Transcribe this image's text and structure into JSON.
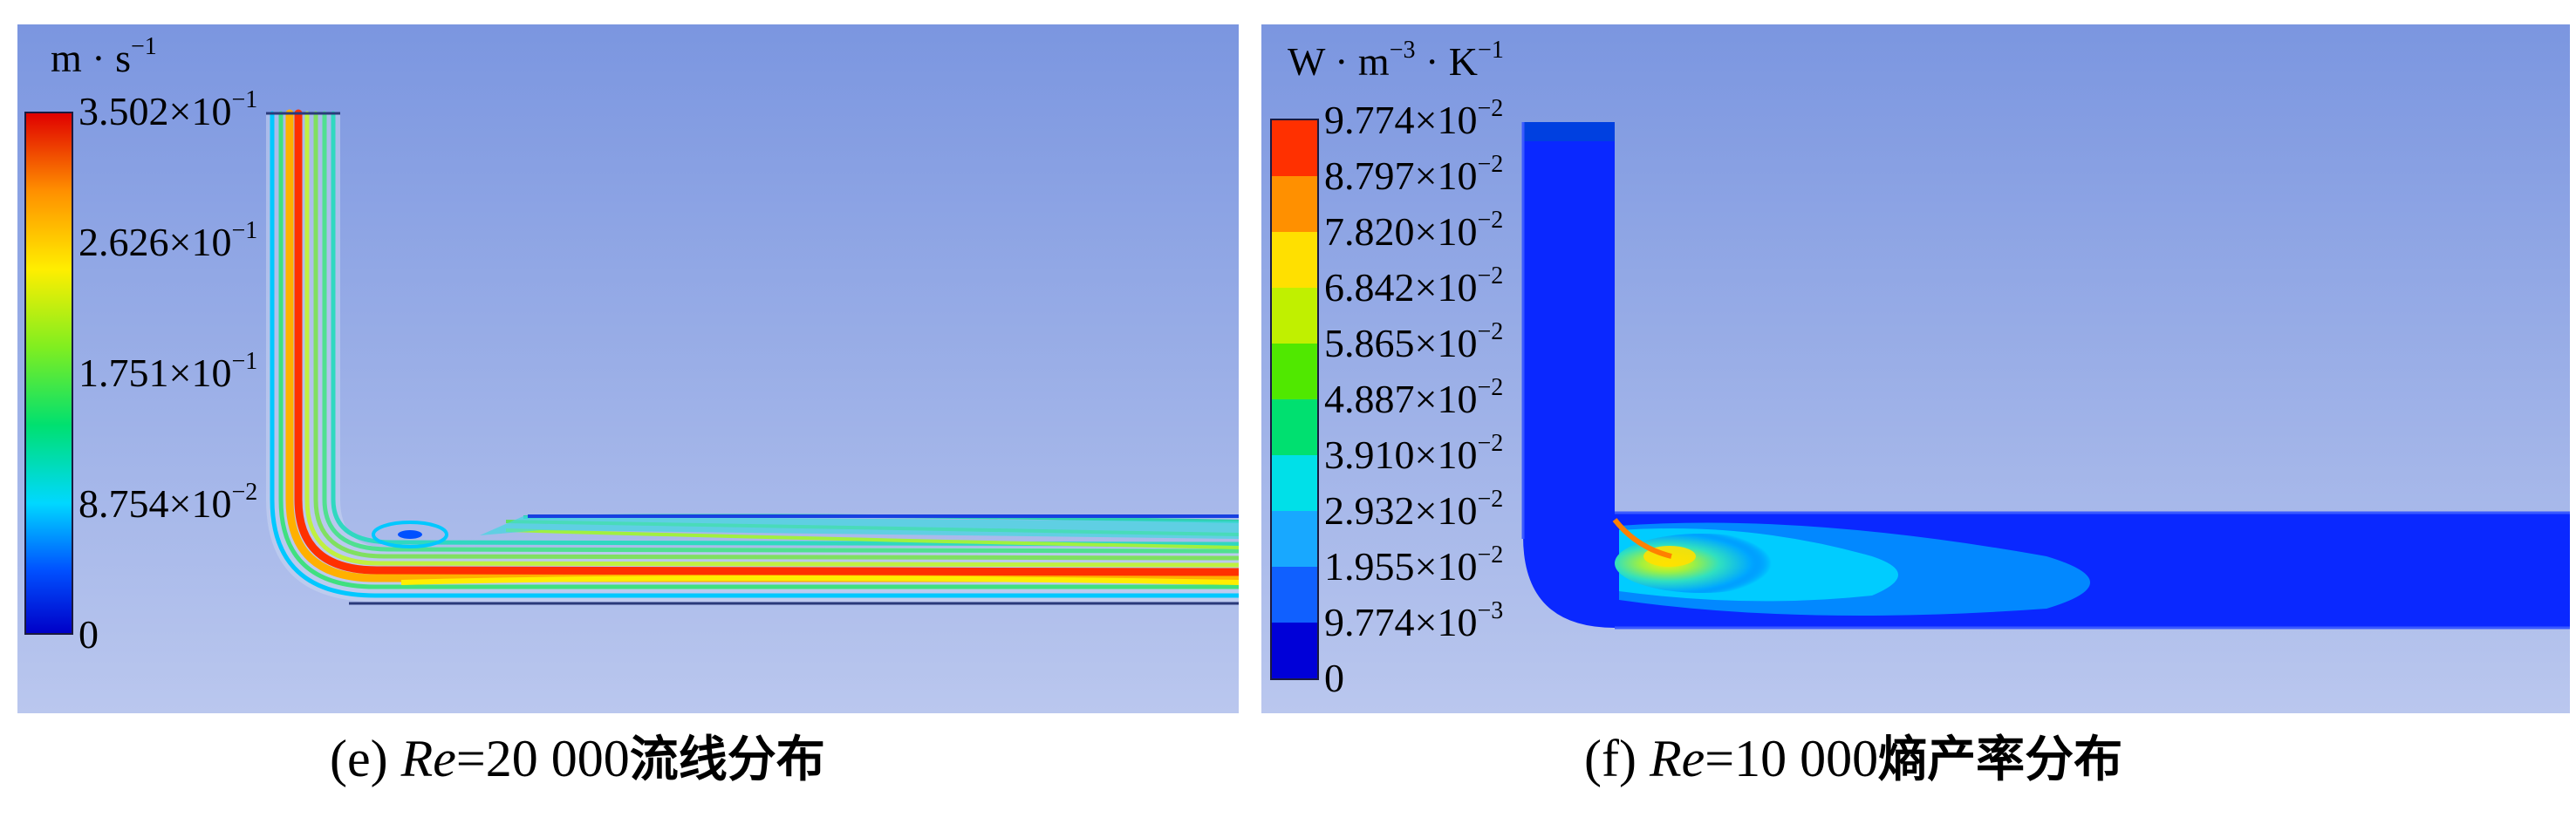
{
  "panels": [
    {
      "unit": {
        "base1": "m · s",
        "exp1": "−1"
      },
      "colorbar": [
        {
          "mantissa": "3.502×10",
          "exp": "−1",
          "frac": 1.0
        },
        {
          "mantissa": "2.626×10",
          "exp": "−1",
          "frac": 0.75
        },
        {
          "mantissa": "1.751×10",
          "exp": "−1",
          "frac": 0.5
        },
        {
          "mantissa": "8.754×10",
          "exp": "−2",
          "frac": 0.25
        },
        {
          "mantissa": "0",
          "exp": "",
          "frac": 0.0
        }
      ],
      "caption": {
        "prefix": "(e) ",
        "var": "Re",
        "value": "=20 000",
        "title": "流线分布"
      }
    },
    {
      "unit": {
        "base1": "W · m",
        "exp1": "−3",
        "base2": " · K",
        "exp2": "−1"
      },
      "colorbar": [
        {
          "mantissa": "9.774×10",
          "exp": "−2",
          "frac": 1.0
        },
        {
          "mantissa": "8.797×10",
          "exp": "−2",
          "frac": 0.9
        },
        {
          "mantissa": "7.820×10",
          "exp": "−2",
          "frac": 0.8
        },
        {
          "mantissa": "6.842×10",
          "exp": "−2",
          "frac": 0.7
        },
        {
          "mantissa": "5.865×10",
          "exp": "−2",
          "frac": 0.6
        },
        {
          "mantissa": "4.887×10",
          "exp": "−2",
          "frac": 0.5
        },
        {
          "mantissa": "3.910×10",
          "exp": "−2",
          "frac": 0.4
        },
        {
          "mantissa": "2.932×10",
          "exp": "−2",
          "frac": 0.3
        },
        {
          "mantissa": "1.955×10",
          "exp": "−2",
          "frac": 0.2
        },
        {
          "mantissa": "9.774×10",
          "exp": "−3",
          "frac": 0.1
        },
        {
          "mantissa": "0",
          "exp": "",
          "frac": 0.0
        }
      ],
      "caption": {
        "prefix": "(f) ",
        "var": "Re",
        "value": "=10 000",
        "title": "熵产率分布"
      }
    }
  ],
  "colors": {
    "background_top": "#7b96e0",
    "background_bottom": "#bac7ee",
    "jet": [
      "#0000c8",
      "#0050ff",
      "#00d8ff",
      "#00e070",
      "#a8f000",
      "#ffee00",
      "#ffa000",
      "#ff3000",
      "#d00000"
    ]
  }
}
